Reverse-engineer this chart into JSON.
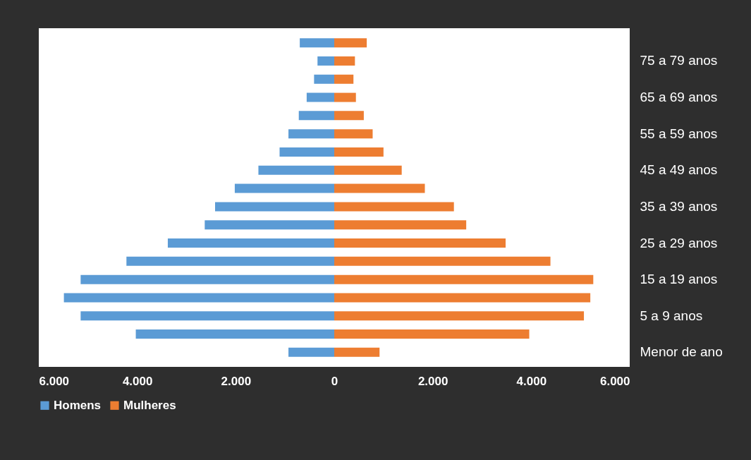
{
  "chart_data": {
    "type": "bar",
    "orientation": "horizontal",
    "stacked": true,
    "categories": [
      null,
      "75 a 79 anos",
      null,
      "65 a 69 anos",
      null,
      "55 a 59 anos",
      null,
      "45 a 49 anos",
      null,
      "35 a 39 anos",
      null,
      "25 a 29 anos",
      null,
      "15 a 19 anos",
      null,
      "5 a 9 anos",
      null,
      "Menor de ano"
    ],
    "series": [
      {
        "name": "Homens",
        "color": "#5b9bd5",
        "values": [
          -700,
          -340,
          -410,
          -560,
          -720,
          -930,
          -1110,
          -1540,
          -2020,
          -2420,
          -2630,
          -3380,
          -4220,
          -5150,
          -5490,
          -5150,
          -4030,
          -930
        ]
      },
      {
        "name": "Mulheres",
        "color": "#ed7d31",
        "values": [
          660,
          420,
          390,
          440,
          600,
          780,
          1000,
          1370,
          1840,
          2430,
          2680,
          3480,
          4390,
          5260,
          5200,
          5070,
          3960,
          920
        ]
      }
    ],
    "xlim": [
      -6000,
      6000
    ],
    "xticks": [
      {
        "value": -6000,
        "label": "6.000"
      },
      {
        "value": -4000,
        "label": "4.000"
      },
      {
        "value": -2000,
        "label": "2.000"
      },
      0,
      {
        "value": 2000,
        "label": "2.000"
      },
      {
        "value": 4000,
        "label": "4.000"
      },
      {
        "value": 6000,
        "label": "6.000"
      }
    ],
    "grid": false,
    "legend": "bottom"
  }
}
